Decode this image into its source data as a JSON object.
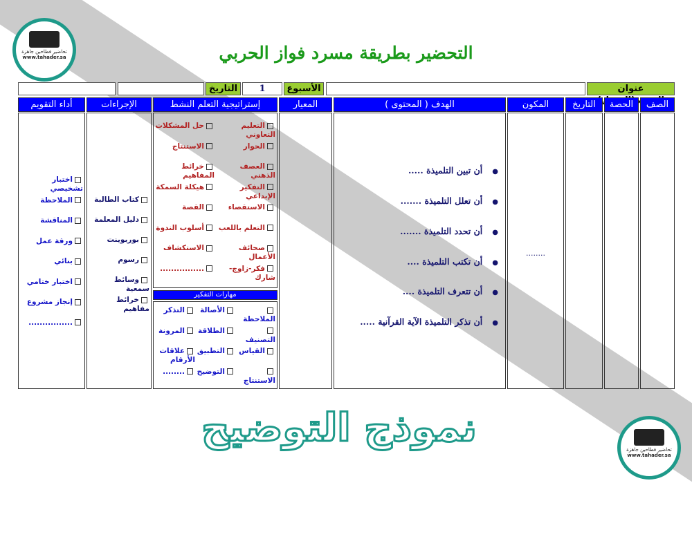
{
  "title": "التحضير بطريقة مسرد فواز الحربي",
  "logo": {
    "name": "تحاضير فطاحين جاهزة",
    "url": "www.tahader.sa"
  },
  "watermark": "نموذج التوضيح",
  "top_row": {
    "unit_label": "عنوان الوحدة(الفصل)",
    "unit_value": "",
    "week_label": "الأسبوع",
    "week_value": "1",
    "date_label": "التاريخ",
    "date_value": "",
    "extra_value": ""
  },
  "headers": {
    "class": "الصف",
    "period": "الحصة",
    "date": "التاريخ",
    "component": "المكون",
    "goal": "الهدف ( المحتوى )",
    "standard": "المعيار",
    "strategy": "إستراتيجية التعلم النشط",
    "procedures": "الإجراءات",
    "evaluation": "أداء التقويم"
  },
  "component_value": "........",
  "goals": [
    "أن تبين التلميذة .....",
    "أن تعلل التلميذة .......",
    "أن تحدد التلميذة .......",
    "أن تكتب التلميذة ....",
    "أن تتعرف التلميذة ....",
    "أن تذكر التلميذة الآية القرآنية ....."
  ],
  "strategies_right": [
    "التعليم التعاوني",
    "الحوار",
    "العصف الذهني",
    "التفكير الإبداعي",
    "الاستقصاء",
    "التعلم باللعب",
    "صحائف الأعمال",
    "فكر-زاوج-شارك"
  ],
  "strategies_left": [
    "حل المشكلات",
    "الاستنتاج",
    "خرائط المفاهيم",
    "هيكلة السمكة",
    "القصة",
    "أسلوب الندوة",
    "الاستكشاف",
    "................"
  ],
  "thinking_title": "مهارات التفكير",
  "thinking": [
    [
      "الملاحظة",
      "الأصالة",
      "التذكر"
    ],
    [
      "التصنيف",
      "الطلاقة",
      "المرونة"
    ],
    [
      "القياس",
      "التطبيق",
      "علاقات الأرقام"
    ],
    [
      "الاستنتاج",
      "التوضيح",
      "........"
    ]
  ],
  "procedures": [
    "كتاب الطالبة",
    "دليل المعلمة",
    "بوربوينت",
    "رسوم",
    "وسائط سمعية",
    "خرائط مفاهيم"
  ],
  "evaluation": [
    "اختبار تشخيصي",
    "الملاحظة",
    "المناقشة",
    "ورقة عمل",
    "بنائي",
    "اختبار ختامي",
    "إنجاز مشروع",
    "................"
  ],
  "colors": {
    "header_blue": "#0000ff",
    "label_green": "#9acd32",
    "title_green": "#1a9a1a",
    "strategy_red": "#b22222",
    "watermark_teal": "#1e9a8a"
  }
}
